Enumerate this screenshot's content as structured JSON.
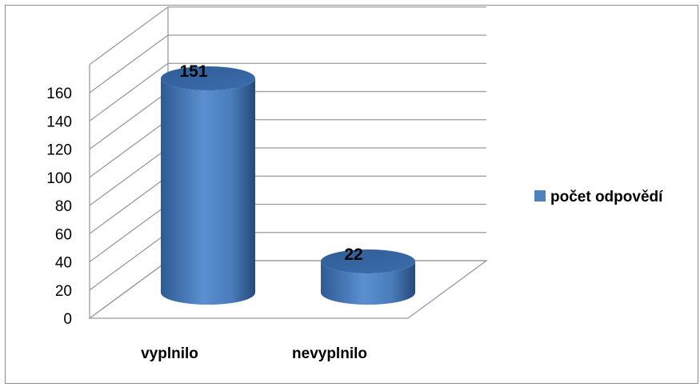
{
  "chart_data": {
    "type": "bar",
    "style": "3d-cylinder",
    "categories": [
      "vyplnilo",
      "nevyplnilo"
    ],
    "series": [
      {
        "name": "počet odpovědí",
        "values": [
          151,
          22
        ],
        "color": "#4f81bd"
      }
    ],
    "data_labels": [
      "151",
      "22"
    ],
    "y_ticks": [
      "0",
      "20",
      "40",
      "60",
      "80",
      "100",
      "120",
      "140",
      "160"
    ],
    "ylim": [
      0,
      160
    ],
    "grid": true,
    "legend_position": "right",
    "title": "",
    "xlabel": "",
    "ylabel": ""
  }
}
